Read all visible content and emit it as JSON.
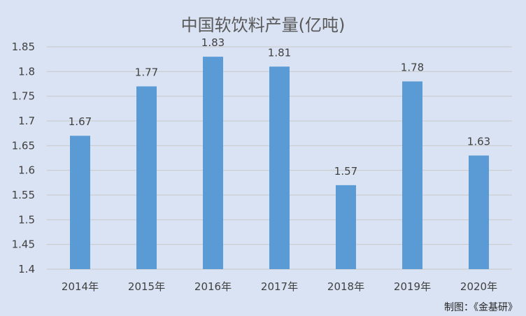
{
  "chart_data": {
    "type": "bar",
    "title": "中国软饮料产量(亿吨)",
    "categories": [
      "2014年",
      "2015年",
      "2016年",
      "2017年",
      "2018年",
      "2019年",
      "2020年"
    ],
    "values": [
      1.67,
      1.77,
      1.83,
      1.81,
      1.57,
      1.78,
      1.63
    ],
    "data_labels": [
      "1.67",
      "1.77",
      "1.83",
      "1.81",
      "1.57",
      "1.78",
      "1.63"
    ],
    "y_ticks": [
      "1.4",
      "1.45",
      "1.5",
      "1.55",
      "1.6",
      "1.65",
      "1.7",
      "1.75",
      "1.8",
      "1.85"
    ],
    "ylim": [
      1.4,
      1.85
    ],
    "grid": true,
    "bar_color": "#5b9bd5",
    "background_color": "#dae3f3"
  },
  "credit": "制图：《金基研》"
}
